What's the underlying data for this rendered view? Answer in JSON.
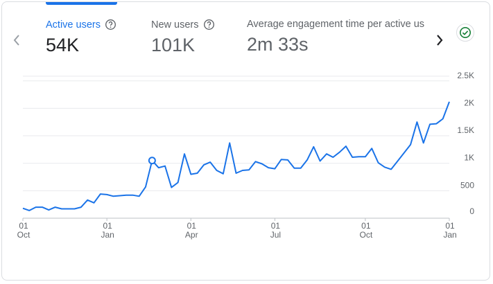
{
  "metrics": [
    {
      "label": "Active users",
      "value": "54K",
      "help_icon": "help-icon",
      "active": true
    },
    {
      "label": "New users",
      "value": "101K",
      "help_icon": "help-icon",
      "active": false
    },
    {
      "label": "Average engagement time per active us",
      "value": "2m 33s",
      "help_icon": null,
      "active": false
    }
  ],
  "nav": {
    "prev_icon": "chevron-left-icon",
    "next_icon": "chevron-right-icon"
  },
  "status": {
    "icon": "check-circle-icon",
    "color": "#188038"
  },
  "colors": {
    "accent": "#1a73e8",
    "line": "#1a73e8",
    "grid": "#e8eaed"
  },
  "chart_data": {
    "type": "line",
    "series": [
      {
        "values": [
          180,
          140,
          200,
          200,
          150,
          200,
          170,
          170,
          170,
          200,
          330,
          280,
          440,
          430,
          400,
          410,
          420,
          420,
          400,
          570,
          1050,
          920,
          950,
          560,
          650,
          1170,
          800,
          820,
          970,
          1020,
          870,
          810,
          1370,
          820,
          870,
          880,
          1030,
          990,
          920,
          900,
          1070,
          1060,
          910,
          910,
          1060,
          1300,
          1040,
          1170,
          1110,
          1200,
          1310,
          1110,
          1120,
          1120,
          1270,
          1010,
          930,
          890,
          1040,
          1190,
          1340,
          1750,
          1370,
          1710,
          1720,
          1810,
          2120
        ]
      }
    ],
    "highlight_index": 20,
    "x_ticks": [
      {
        "index": 0,
        "day": "01",
        "month": "Oct"
      },
      {
        "index": 13,
        "day": "01",
        "month": "Jan"
      },
      {
        "index": 26,
        "day": "01",
        "month": "Apr"
      },
      {
        "index": 39,
        "day": "01",
        "month": "Jul"
      },
      {
        "index": 53,
        "day": "01",
        "month": "Oct"
      },
      {
        "index": 66,
        "day": "01",
        "month": "Jan"
      }
    ],
    "y_ticks": [
      {
        "value": 0,
        "label": "0"
      },
      {
        "value": 500,
        "label": "500"
      },
      {
        "value": 1000,
        "label": "1K"
      },
      {
        "value": 1500,
        "label": "1.5K"
      },
      {
        "value": 2000,
        "label": "2K"
      },
      {
        "value": 2500,
        "label": "2.5K"
      }
    ],
    "ylim": [
      0,
      2500
    ],
    "grid": true
  }
}
